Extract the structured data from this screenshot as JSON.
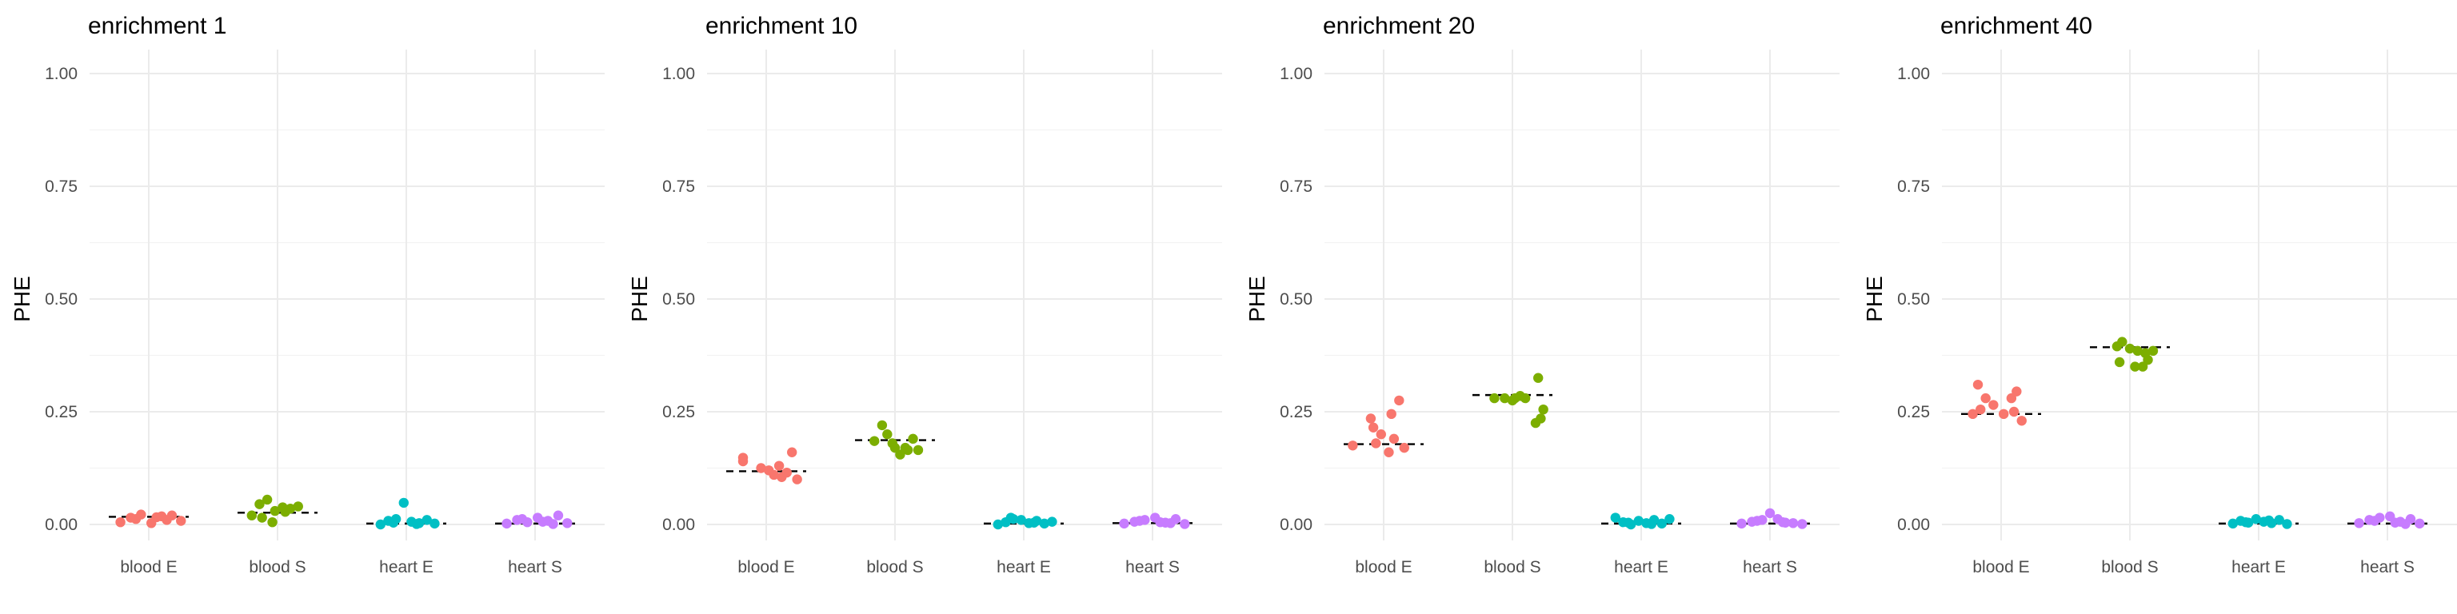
{
  "chart_data": [
    {
      "type": "scatter",
      "title": "enrichment 1",
      "ylabel": "PHE",
      "xlabel": "",
      "ylim": [
        0,
        1
      ],
      "yticks": [
        "0.00",
        "0.25",
        "0.50",
        "0.75",
        "1.00"
      ],
      "categories": [
        "blood E",
        "blood S",
        "heart E",
        "heart S"
      ],
      "means": [
        0.017,
        0.026,
        0.002,
        0.002
      ],
      "series": [
        {
          "name": "blood E",
          "color": "#F8766D",
          "x_offsets": [
            -0.22,
            -0.14,
            -0.06,
            0.02,
            0.1,
            0.18,
            0.25,
            -0.1,
            0.06,
            0.14
          ],
          "values": [
            0.005,
            0.015,
            0.022,
            0.003,
            0.018,
            0.02,
            0.008,
            0.012,
            0.016,
            0.01
          ]
        },
        {
          "name": "blood S",
          "color": "#7CAE00",
          "x_offsets": [
            -0.2,
            -0.14,
            -0.08,
            -0.02,
            0.04,
            0.1,
            0.16,
            -0.12,
            -0.04,
            0.06
          ],
          "values": [
            0.02,
            0.045,
            0.055,
            0.03,
            0.038,
            0.035,
            0.04,
            0.015,
            0.005,
            0.028
          ]
        },
        {
          "name": "heart E",
          "color": "#00BFC4",
          "x_offsets": [
            -0.2,
            -0.14,
            -0.08,
            -0.02,
            0.04,
            0.1,
            0.16,
            0.22,
            -0.1,
            0.08
          ],
          "values": [
            0.0,
            0.008,
            0.012,
            0.048,
            0.006,
            0.003,
            0.01,
            0.002,
            0.004,
            0.001
          ]
        },
        {
          "name": "heart S",
          "color": "#C77CFF",
          "x_offsets": [
            -0.22,
            -0.14,
            -0.06,
            0.02,
            0.1,
            0.18,
            0.25,
            -0.1,
            0.06,
            0.14
          ],
          "values": [
            0.002,
            0.01,
            0.005,
            0.015,
            0.008,
            0.02,
            0.003,
            0.012,
            0.006,
            0.001
          ]
        }
      ]
    },
    {
      "type": "scatter",
      "title": "enrichment 10",
      "ylabel": "PHE",
      "xlabel": "",
      "ylim": [
        0,
        1
      ],
      "yticks": [
        "0.00",
        "0.25",
        "0.50",
        "0.75",
        "1.00"
      ],
      "categories": [
        "blood E",
        "blood S",
        "heart E",
        "heart S"
      ],
      "means": [
        0.118,
        0.187,
        0.002,
        0.003
      ],
      "series": [
        {
          "name": "blood E",
          "color": "#F8766D",
          "x_offsets": [
            -0.18,
            -0.18,
            -0.04,
            0.02,
            0.06,
            0.12,
            0.16,
            0.2,
            0.1,
            0.24
          ],
          "values": [
            0.14,
            0.148,
            0.125,
            0.12,
            0.11,
            0.105,
            0.115,
            0.16,
            0.13,
            0.1
          ]
        },
        {
          "name": "blood S",
          "color": "#7CAE00",
          "x_offsets": [
            -0.16,
            -0.1,
            -0.06,
            0.0,
            0.04,
            0.1,
            0.14,
            0.18,
            -0.02,
            0.08
          ],
          "values": [
            0.185,
            0.22,
            0.2,
            0.17,
            0.155,
            0.165,
            0.19,
            0.165,
            0.18,
            0.17
          ]
        },
        {
          "name": "heart E",
          "color": "#00BFC4",
          "x_offsets": [
            -0.2,
            -0.14,
            -0.08,
            -0.02,
            0.04,
            0.1,
            0.16,
            0.22,
            -0.1,
            0.08
          ],
          "values": [
            0.0,
            0.005,
            0.012,
            0.01,
            0.003,
            0.008,
            0.002,
            0.006,
            0.015,
            0.004
          ]
        },
        {
          "name": "heart S",
          "color": "#C77CFF",
          "x_offsets": [
            -0.22,
            -0.14,
            -0.06,
            0.02,
            0.1,
            0.18,
            0.25,
            -0.1,
            0.06,
            0.14
          ],
          "values": [
            0.002,
            0.006,
            0.01,
            0.015,
            0.004,
            0.012,
            0.001,
            0.008,
            0.005,
            0.003
          ]
        }
      ]
    },
    {
      "type": "scatter",
      "title": "enrichment 20",
      "ylabel": "PHE",
      "xlabel": "",
      "ylim": [
        0,
        1
      ],
      "yticks": [
        "0.00",
        "0.25",
        "0.50",
        "0.75",
        "1.00"
      ],
      "categories": [
        "blood E",
        "blood S",
        "heart E",
        "heart S"
      ],
      "means": [
        0.178,
        0.287,
        0.002,
        0.002
      ],
      "series": [
        {
          "name": "blood E",
          "color": "#F8766D",
          "x_offsets": [
            -0.24,
            -0.1,
            -0.08,
            -0.02,
            0.04,
            0.08,
            0.12,
            0.16,
            0.06,
            -0.06
          ],
          "values": [
            0.175,
            0.235,
            0.215,
            0.2,
            0.16,
            0.19,
            0.275,
            0.17,
            0.245,
            0.18
          ]
        },
        {
          "name": "blood S",
          "color": "#7CAE00",
          "x_offsets": [
            -0.14,
            -0.06,
            0.0,
            0.06,
            0.1,
            0.18,
            0.22,
            0.24,
            0.2,
            0.02
          ],
          "values": [
            0.28,
            0.28,
            0.275,
            0.285,
            0.28,
            0.225,
            0.235,
            0.255,
            0.325,
            0.28
          ]
        },
        {
          "name": "heart E",
          "color": "#00BFC4",
          "x_offsets": [
            -0.2,
            -0.14,
            -0.08,
            -0.02,
            0.04,
            0.1,
            0.16,
            0.22,
            -0.1,
            0.08
          ],
          "values": [
            0.015,
            0.005,
            0.0,
            0.008,
            0.003,
            0.01,
            0.002,
            0.012,
            0.004,
            0.001
          ]
        },
        {
          "name": "heart S",
          "color": "#C77CFF",
          "x_offsets": [
            -0.22,
            -0.14,
            -0.06,
            0.0,
            0.06,
            0.12,
            0.18,
            0.25,
            -0.1,
            0.1
          ],
          "values": [
            0.002,
            0.006,
            0.01,
            0.025,
            0.012,
            0.004,
            0.003,
            0.001,
            0.008,
            0.005
          ]
        }
      ]
    },
    {
      "type": "scatter",
      "title": "enrichment 40",
      "ylabel": "PHE",
      "xlabel": "",
      "ylim": [
        0,
        1
      ],
      "yticks": [
        "0.00",
        "0.25",
        "0.50",
        "0.75",
        "1.00"
      ],
      "categories": [
        "blood E",
        "blood S",
        "heart E",
        "heart S"
      ],
      "means": [
        0.245,
        0.393,
        0.002,
        0.002
      ],
      "series": [
        {
          "name": "blood E",
          "color": "#F8766D",
          "x_offsets": [
            -0.22,
            -0.18,
            -0.12,
            -0.06,
            0.02,
            0.08,
            0.12,
            0.16,
            0.1,
            -0.16
          ],
          "values": [
            0.245,
            0.31,
            0.28,
            0.265,
            0.245,
            0.28,
            0.295,
            0.23,
            0.25,
            0.255
          ]
        },
        {
          "name": "blood S",
          "color": "#7CAE00",
          "x_offsets": [
            -0.1,
            -0.06,
            0.0,
            0.06,
            0.1,
            0.14,
            0.18,
            -0.08,
            0.04,
            0.12
          ],
          "values": [
            0.395,
            0.405,
            0.39,
            0.385,
            0.35,
            0.365,
            0.385,
            0.36,
            0.35,
            0.38
          ]
        },
        {
          "name": "heart E",
          "color": "#00BFC4",
          "x_offsets": [
            -0.2,
            -0.14,
            -0.08,
            -0.02,
            0.04,
            0.1,
            0.16,
            0.22,
            -0.1,
            0.08
          ],
          "values": [
            0.002,
            0.008,
            0.004,
            0.012,
            0.006,
            0.003,
            0.01,
            0.001,
            0.005,
            0.009
          ]
        },
        {
          "name": "heart S",
          "color": "#C77CFF",
          "x_offsets": [
            -0.22,
            -0.14,
            -0.06,
            0.02,
            0.1,
            0.18,
            0.25,
            -0.1,
            0.06,
            0.14
          ],
          "values": [
            0.003,
            0.01,
            0.015,
            0.018,
            0.006,
            0.012,
            0.002,
            0.008,
            0.004,
            0.001
          ]
        }
      ]
    }
  ]
}
